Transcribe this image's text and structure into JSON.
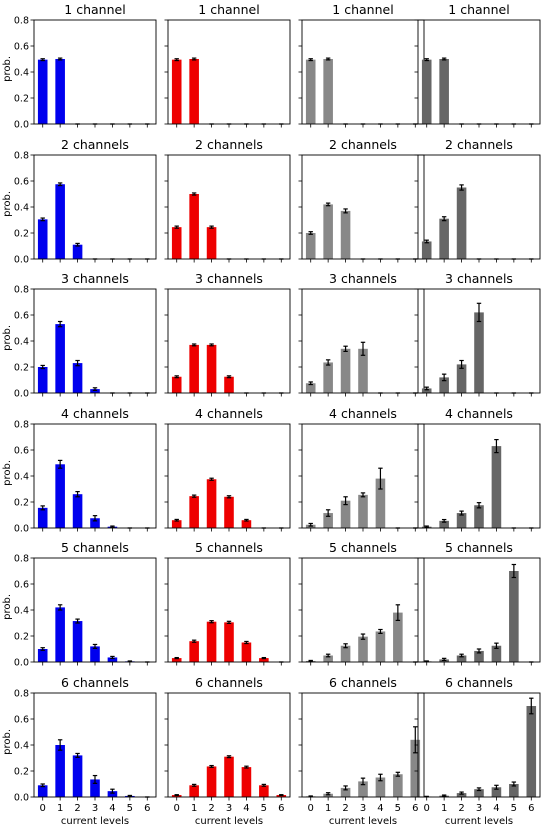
{
  "chart_data": {
    "type": "bar",
    "grid": false,
    "ylabel": "prob.",
    "xlabel": "current levels",
    "categories": [
      "0",
      "1",
      "2",
      "3",
      "4",
      "5",
      "6"
    ],
    "ylim": [
      0,
      0.8
    ],
    "yticks": [
      "0.0",
      "0.2",
      "0.4",
      "0.6",
      "0.8"
    ],
    "column_colors": [
      "#0000ee",
      "#ee0000",
      "#888888",
      "#666666"
    ],
    "row_titles": [
      "1 channel",
      "2 channels",
      "3 channels",
      "4 channels",
      "5 channels",
      "6 channels"
    ],
    "rows": [
      [
        {
          "values": [
            0.495,
            0.5,
            0,
            0,
            0,
            0,
            0
          ],
          "errors": [
            0.007,
            0.007,
            0,
            0,
            0,
            0,
            0
          ]
        },
        {
          "values": [
            0.495,
            0.5,
            0,
            0,
            0,
            0,
            0
          ],
          "errors": [
            0.007,
            0.007,
            0,
            0,
            0,
            0,
            0
          ]
        },
        {
          "values": [
            0.495,
            0.5,
            0,
            0,
            0,
            0,
            0
          ],
          "errors": [
            0.007,
            0.007,
            0,
            0,
            0,
            0,
            0
          ]
        },
        {
          "values": [
            0.495,
            0.5,
            0,
            0,
            0,
            0,
            0
          ],
          "errors": [
            0.007,
            0.007,
            0,
            0,
            0,
            0,
            0
          ]
        }
      ],
      [
        {
          "values": [
            0.305,
            0.575,
            0.11,
            0,
            0,
            0,
            0
          ],
          "errors": [
            0.01,
            0.01,
            0.01,
            0,
            0,
            0,
            0
          ]
        },
        {
          "values": [
            0.245,
            0.5,
            0.245,
            0,
            0,
            0,
            0
          ],
          "errors": [
            0.008,
            0.008,
            0.008,
            0,
            0,
            0,
            0
          ]
        },
        {
          "values": [
            0.2,
            0.42,
            0.37,
            0,
            0,
            0,
            0
          ],
          "errors": [
            0.01,
            0.01,
            0.015,
            0,
            0,
            0,
            0
          ]
        },
        {
          "values": [
            0.135,
            0.31,
            0.55,
            0,
            0,
            0,
            0
          ],
          "errors": [
            0.01,
            0.015,
            0.02,
            0,
            0,
            0,
            0
          ]
        }
      ],
      [
        {
          "values": [
            0.2,
            0.53,
            0.23,
            0.03,
            0,
            0,
            0
          ],
          "errors": [
            0.012,
            0.02,
            0.02,
            0.01,
            0,
            0,
            0
          ]
        },
        {
          "values": [
            0.125,
            0.37,
            0.37,
            0.125,
            0,
            0,
            0
          ],
          "errors": [
            0.007,
            0.007,
            0.007,
            0.007,
            0,
            0,
            0
          ]
        },
        {
          "values": [
            0.075,
            0.235,
            0.34,
            0.34,
            0,
            0,
            0
          ],
          "errors": [
            0.01,
            0.02,
            0.02,
            0.05,
            0,
            0,
            0
          ]
        },
        {
          "values": [
            0.035,
            0.12,
            0.22,
            0.62,
            0,
            0,
            0
          ],
          "errors": [
            0.01,
            0.025,
            0.03,
            0.07,
            0,
            0,
            0
          ]
        }
      ],
      [
        {
          "values": [
            0.155,
            0.49,
            0.26,
            0.075,
            0.01,
            0,
            0
          ],
          "errors": [
            0.015,
            0.03,
            0.02,
            0.02,
            0.005,
            0,
            0
          ]
        },
        {
          "values": [
            0.06,
            0.245,
            0.375,
            0.24,
            0.06,
            0,
            0
          ],
          "errors": [
            0.006,
            0.008,
            0.008,
            0.008,
            0.006,
            0,
            0
          ]
        },
        {
          "values": [
            0.025,
            0.115,
            0.21,
            0.255,
            0.38,
            0,
            0
          ],
          "errors": [
            0.01,
            0.025,
            0.03,
            0.015,
            0.08,
            0,
            0
          ]
        },
        {
          "values": [
            0.01,
            0.055,
            0.115,
            0.175,
            0.63,
            0,
            0
          ],
          "errors": [
            0.005,
            0.01,
            0.015,
            0.02,
            0.05,
            0,
            0
          ]
        }
      ],
      [
        {
          "values": [
            0.1,
            0.42,
            0.315,
            0.12,
            0.035,
            0.005,
            0
          ],
          "errors": [
            0.01,
            0.02,
            0.015,
            0.015,
            0.008,
            0.003,
            0
          ]
        },
        {
          "values": [
            0.03,
            0.16,
            0.31,
            0.305,
            0.15,
            0.03,
            0
          ],
          "errors": [
            0.004,
            0.008,
            0.008,
            0.008,
            0.008,
            0.004,
            0
          ]
        },
        {
          "values": [
            0.008,
            0.05,
            0.125,
            0.195,
            0.235,
            0.38,
            0
          ],
          "errors": [
            0.004,
            0.01,
            0.015,
            0.02,
            0.015,
            0.06,
            0
          ]
        },
        {
          "values": [
            0.005,
            0.02,
            0.05,
            0.085,
            0.125,
            0.7,
            0
          ],
          "errors": [
            0.003,
            0.008,
            0.01,
            0.015,
            0.02,
            0.05,
            0
          ]
        }
      ],
      [
        {
          "values": [
            0.09,
            0.4,
            0.32,
            0.135,
            0.045,
            0.008,
            0
          ],
          "errors": [
            0.01,
            0.04,
            0.015,
            0.03,
            0.015,
            0.004,
            0
          ]
        },
        {
          "values": [
            0.015,
            0.09,
            0.235,
            0.31,
            0.23,
            0.09,
            0.015
          ],
          "errors": [
            0.003,
            0.007,
            0.007,
            0.007,
            0.007,
            0.007,
            0.003
          ]
        },
        {
          "values": [
            0.005,
            0.025,
            0.07,
            0.12,
            0.15,
            0.175,
            0.44
          ],
          "errors": [
            0.003,
            0.008,
            0.015,
            0.025,
            0.025,
            0.015,
            0.1
          ]
        },
        {
          "values": [
            0.003,
            0.01,
            0.03,
            0.06,
            0.075,
            0.1,
            0.7
          ],
          "errors": [
            0.002,
            0.005,
            0.008,
            0.01,
            0.015,
            0.015,
            0.06
          ]
        }
      ]
    ]
  }
}
